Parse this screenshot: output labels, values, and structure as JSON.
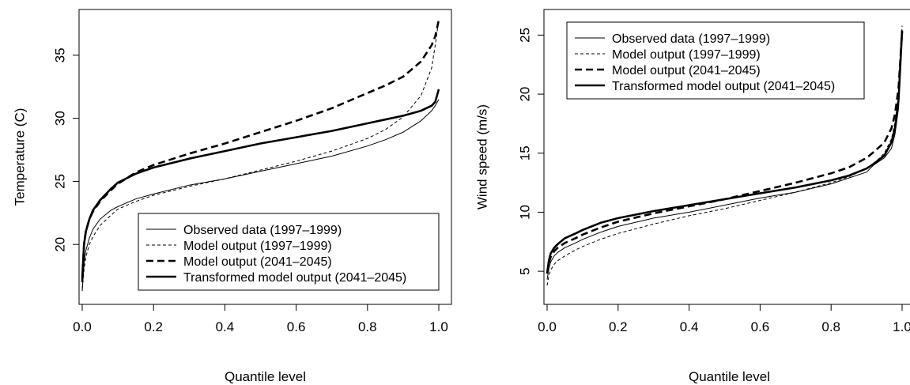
{
  "chart_data": [
    {
      "type": "line",
      "xlabel": "Quantile level",
      "ylabel": "Temperature (C)",
      "xlim": [
        0,
        1
      ],
      "ylim": [
        16,
        38
      ],
      "xticks": [
        "0.0",
        "0.2",
        "0.4",
        "0.6",
        "0.8",
        "1.0"
      ],
      "yticks": [
        "20",
        "25",
        "30",
        "35"
      ],
      "grid": false,
      "legend_position": "bottom-right",
      "series": [
        {
          "name": "Observed data (1997–1999)",
          "style": "thin-solid",
          "x": [
            0,
            0.005,
            0.01,
            0.02,
            0.03,
            0.05,
            0.08,
            0.1,
            0.15,
            0.2,
            0.3,
            0.4,
            0.5,
            0.6,
            0.7,
            0.8,
            0.85,
            0.9,
            0.95,
            0.98,
            0.99,
            1.0
          ],
          "y": [
            16.3,
            18.5,
            19.5,
            20.5,
            21.2,
            22.0,
            22.7,
            23.0,
            23.6,
            24.0,
            24.7,
            25.2,
            25.8,
            26.4,
            27.0,
            27.8,
            28.3,
            28.9,
            29.8,
            30.6,
            31.0,
            31.5
          ]
        },
        {
          "name": "Model output (1997–1999)",
          "style": "thin-dashed",
          "x": [
            0,
            0.005,
            0.01,
            0.02,
            0.03,
            0.05,
            0.08,
            0.1,
            0.15,
            0.2,
            0.3,
            0.4,
            0.5,
            0.6,
            0.7,
            0.8,
            0.85,
            0.9,
            0.95,
            0.98,
            0.99,
            1.0
          ],
          "y": [
            16.5,
            18.0,
            19.0,
            20.0,
            20.6,
            21.5,
            22.3,
            22.8,
            23.4,
            23.9,
            24.6,
            25.2,
            25.9,
            26.6,
            27.4,
            28.4,
            29.1,
            30.1,
            31.8,
            34.0,
            35.8,
            37.8
          ]
        },
        {
          "name": "Model output (2041–2045)",
          "style": "thick-dashed",
          "x": [
            0,
            0.005,
            0.01,
            0.02,
            0.03,
            0.05,
            0.08,
            0.1,
            0.15,
            0.2,
            0.3,
            0.4,
            0.5,
            0.6,
            0.7,
            0.8,
            0.85,
            0.9,
            0.95,
            0.98,
            0.99,
            1.0
          ],
          "y": [
            17.0,
            20.0,
            21.0,
            22.0,
            22.6,
            23.4,
            24.3,
            24.8,
            25.7,
            26.3,
            27.2,
            28.0,
            28.9,
            29.8,
            30.8,
            32.0,
            32.6,
            33.3,
            34.5,
            35.8,
            36.5,
            37.8
          ]
        },
        {
          "name": "Transformed model output (2041–2045)",
          "style": "thick-solid",
          "x": [
            0,
            0.005,
            0.01,
            0.02,
            0.03,
            0.05,
            0.08,
            0.1,
            0.15,
            0.2,
            0.3,
            0.4,
            0.5,
            0.6,
            0.7,
            0.8,
            0.85,
            0.9,
            0.95,
            0.98,
            0.99,
            1.0
          ],
          "y": [
            17.3,
            20.0,
            21.0,
            22.0,
            22.7,
            23.5,
            24.4,
            24.9,
            25.6,
            26.1,
            26.8,
            27.4,
            28.0,
            28.5,
            29.0,
            29.6,
            29.9,
            30.2,
            30.6,
            31.0,
            31.3,
            32.3
          ]
        }
      ]
    },
    {
      "type": "line",
      "xlabel": "Quantile level",
      "ylabel": "Wind speed (m/s)",
      "xlim": [
        0,
        1
      ],
      "ylim": [
        3,
        26.5
      ],
      "xticks": [
        "0.0",
        "0.2",
        "0.4",
        "0.6",
        "0.8",
        "1.0"
      ],
      "yticks": [
        "5",
        "10",
        "15",
        "20",
        "25"
      ],
      "grid": false,
      "legend_position": "top-left",
      "series": [
        {
          "name": "Observed data (1997–1999)",
          "style": "thin-solid",
          "x": [
            0,
            0.005,
            0.01,
            0.02,
            0.03,
            0.05,
            0.08,
            0.1,
            0.15,
            0.2,
            0.3,
            0.4,
            0.5,
            0.6,
            0.7,
            0.8,
            0.85,
            0.9,
            0.92,
            0.95,
            0.97,
            0.98,
            0.99,
            1.0
          ],
          "y": [
            4.3,
            5.2,
            5.8,
            6.3,
            6.6,
            7.0,
            7.4,
            7.7,
            8.3,
            8.8,
            9.5,
            10.0,
            10.6,
            11.2,
            11.7,
            12.4,
            12.9,
            13.4,
            14.0,
            14.6,
            15.4,
            16.6,
            18.8,
            25.0
          ]
        },
        {
          "name": "Model output (1997–1999)",
          "style": "thin-dashed",
          "x": [
            0,
            0.005,
            0.01,
            0.02,
            0.03,
            0.05,
            0.08,
            0.1,
            0.15,
            0.2,
            0.3,
            0.4,
            0.5,
            0.6,
            0.7,
            0.8,
            0.85,
            0.9,
            0.92,
            0.95,
            0.97,
            0.98,
            0.99,
            1.0
          ],
          "y": [
            3.8,
            4.6,
            5.1,
            5.6,
            5.9,
            6.3,
            6.8,
            7.1,
            7.7,
            8.2,
            9.0,
            9.7,
            10.3,
            11.0,
            11.7,
            12.5,
            13.0,
            13.7,
            14.1,
            15.0,
            16.2,
            17.6,
            20.0,
            25.8
          ]
        },
        {
          "name": "Model output (2041–2045)",
          "style": "thick-dashed",
          "x": [
            0,
            0.005,
            0.01,
            0.02,
            0.03,
            0.05,
            0.08,
            0.1,
            0.15,
            0.2,
            0.3,
            0.4,
            0.5,
            0.6,
            0.7,
            0.8,
            0.85,
            0.9,
            0.92,
            0.95,
            0.97,
            0.98,
            0.99,
            1.0
          ],
          "y": [
            4.8,
            5.7,
            6.2,
            6.7,
            7.0,
            7.4,
            7.8,
            8.1,
            8.7,
            9.2,
            9.9,
            10.5,
            11.1,
            11.8,
            12.5,
            13.3,
            13.8,
            14.6,
            15.1,
            15.9,
            17.1,
            18.3,
            20.5,
            25.3
          ]
        },
        {
          "name": "Transformed model output (2041–2045)",
          "style": "thick-solid",
          "x": [
            0,
            0.005,
            0.01,
            0.02,
            0.03,
            0.05,
            0.08,
            0.1,
            0.15,
            0.2,
            0.3,
            0.4,
            0.5,
            0.6,
            0.7,
            0.8,
            0.85,
            0.9,
            0.92,
            0.95,
            0.97,
            0.98,
            0.99,
            1.0
          ],
          "y": [
            4.8,
            5.9,
            6.5,
            7.0,
            7.3,
            7.8,
            8.2,
            8.5,
            9.1,
            9.5,
            10.1,
            10.6,
            11.1,
            11.6,
            12.1,
            12.7,
            13.1,
            13.7,
            14.1,
            14.8,
            15.9,
            17.1,
            19.5,
            25.4
          ]
        }
      ]
    }
  ]
}
